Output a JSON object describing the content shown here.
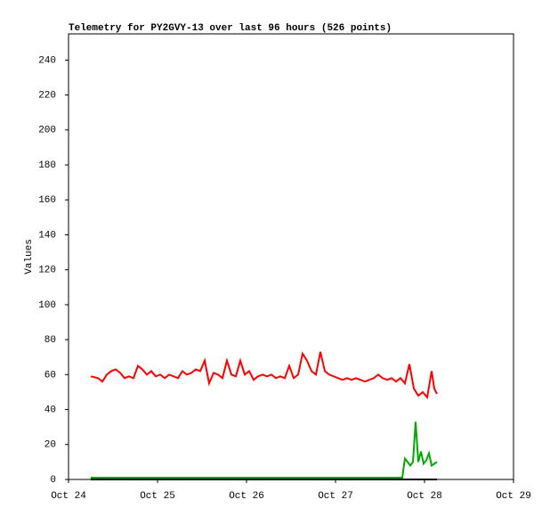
{
  "chart_data": {
    "type": "line",
    "title": "Telemetry for PY2GVY-13 over last 96 hours (526 points)",
    "y_label": "Values",
    "xlim": [
      0,
      5
    ],
    "xticks": [
      {
        "value": 0,
        "label": "Oct 24"
      },
      {
        "value": 1,
        "label": "Oct 25"
      },
      {
        "value": 2,
        "label": "Oct 26"
      },
      {
        "value": 3,
        "label": "Oct 27"
      },
      {
        "value": 4,
        "label": "Oct 28"
      },
      {
        "value": 5,
        "label": "Oct 29"
      }
    ],
    "ylim": [
      0,
      255
    ],
    "yticks": [
      0,
      20,
      40,
      60,
      80,
      100,
      120,
      140,
      160,
      180,
      200,
      220,
      240
    ],
    "grid": false,
    "series": [
      {
        "color": "#ff0000",
        "x": [
          0.25,
          0.33,
          0.38,
          0.43,
          0.48,
          0.53,
          0.58,
          0.63,
          0.68,
          0.73,
          0.78,
          0.83,
          0.88,
          0.93,
          0.98,
          1.03,
          1.08,
          1.13,
          1.18,
          1.23,
          1.28,
          1.33,
          1.38,
          1.43,
          1.48,
          1.53,
          1.58,
          1.63,
          1.68,
          1.73,
          1.78,
          1.83,
          1.88,
          1.93,
          1.98,
          2.03,
          2.08,
          2.13,
          2.18,
          2.23,
          2.28,
          2.33,
          2.38,
          2.43,
          2.48,
          2.53,
          2.58,
          2.63,
          2.68,
          2.73,
          2.78,
          2.83,
          2.88,
          2.93,
          2.98,
          3.03,
          3.08,
          3.13,
          3.18,
          3.23,
          3.28,
          3.33,
          3.38,
          3.43,
          3.48,
          3.53,
          3.58,
          3.63,
          3.68,
          3.73,
          3.78,
          3.83,
          3.88,
          3.93,
          3.98,
          4.03,
          4.08,
          4.11,
          4.14
        ],
        "values": [
          59,
          58,
          56,
          60,
          62,
          63,
          61,
          58,
          59,
          58,
          65,
          63,
          60,
          62,
          59,
          60,
          58,
          60,
          59,
          58,
          62,
          60,
          61,
          63,
          62,
          68,
          55,
          61,
          60,
          58,
          68,
          60,
          59,
          68,
          60,
          62,
          57,
          59,
          60,
          59,
          60,
          58,
          59,
          58,
          65,
          58,
          60,
          72,
          68,
          62,
          60,
          73,
          62,
          60,
          59,
          58,
          57,
          58,
          57,
          58,
          57,
          56,
          57,
          58,
          60,
          58,
          57,
          58,
          56,
          58,
          55,
          66,
          52,
          48,
          50,
          47,
          62,
          52,
          49
        ]
      },
      {
        "color": "#00aa00",
        "x": [
          0.25,
          3.75,
          3.78,
          3.81,
          3.84,
          3.87,
          3.9,
          3.93,
          3.96,
          3.99,
          4.02,
          4.05,
          4.08,
          4.11,
          4.14
        ],
        "values": [
          1,
          1,
          12,
          10,
          8,
          10,
          33,
          10,
          16,
          9,
          11,
          15,
          8,
          9,
          10
        ]
      },
      {
        "color": "#000000",
        "x": [
          0.25,
          4.14
        ],
        "values": [
          0,
          0
        ]
      }
    ]
  }
}
